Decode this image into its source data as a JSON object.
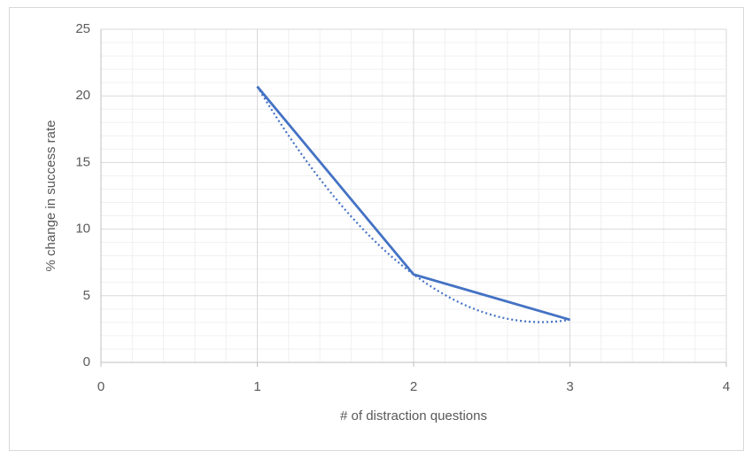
{
  "chart_data": {
    "type": "line",
    "x_label": "# of distraction questions",
    "y_label": "% change in success rate",
    "x": [
      1,
      2,
      3
    ],
    "series": [
      {
        "color": "#4472c4",
        "values": [
          20.7,
          6.6,
          3.2
        ]
      }
    ],
    "xlim": [
      0,
      4
    ],
    "xticks": [
      0,
      1,
      2,
      3,
      4
    ],
    "ylim": [
      0,
      25
    ],
    "yticks": [
      0,
      5,
      10,
      15,
      20,
      25
    ],
    "grid": true,
    "minor_grid": true,
    "trendline": "polynomial"
  }
}
